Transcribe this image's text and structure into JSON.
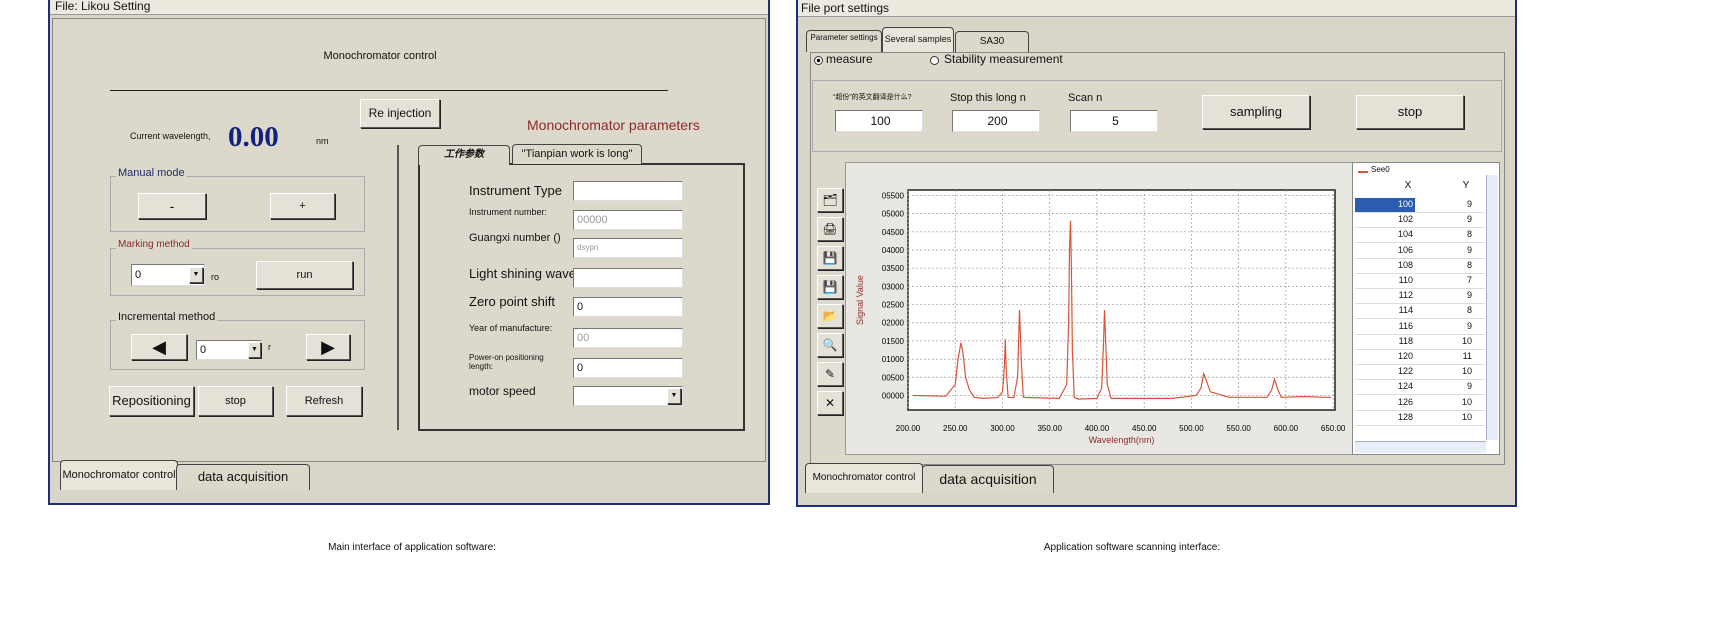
{
  "left_window": {
    "title": "File: Likou Setting",
    "heading": "Monochromator control",
    "reinject_button": "Re injection",
    "wavelength_label": "Current wavelength,",
    "wavelength_value": "0.00",
    "wavelength_unit": "nm",
    "params_title": "Monochromator parameters",
    "manual_mode": {
      "label": "Manual mode",
      "minus": "-",
      "plus": "+"
    },
    "marking": {
      "label": "Marking method",
      "select": "0",
      "unit": "ro",
      "button": "run"
    },
    "incremental": {
      "label": "Incremental method",
      "select": "0",
      "unit": "r"
    },
    "buttons": [
      "Repositioning",
      "stop",
      "Refresh"
    ],
    "param_tabs": [
      "工作参数",
      "\"Tianpian work is long\""
    ],
    "fields": [
      {
        "label": "Instrument Type",
        "value": ""
      },
      {
        "label": "Instrument number:",
        "value": "00000"
      },
      {
        "label": "Guangxi number ()",
        "value": "dsypn"
      },
      {
        "label": "Light shining wavelength:",
        "value": ""
      },
      {
        "label": "Zero point shift",
        "value": "0"
      },
      {
        "label": "Year of manufacture:",
        "value": "00"
      },
      {
        "label": "Power-on positioning length:",
        "value": "0"
      },
      {
        "label": "motor speed",
        "value": ""
      }
    ],
    "tabs": [
      "Monochromator control",
      "data acquisition"
    ],
    "caption": "Main interface of application software:"
  },
  "right_window": {
    "title": "File port settings",
    "tabs": [
      "Parameter settings",
      "Several samples",
      "SA30"
    ],
    "modes": [
      "measure",
      "Stability measurement"
    ],
    "params": [
      {
        "label": "“超份”的英文翻译是什么?",
        "value": "100"
      },
      {
        "label": "Stop this long n",
        "value": "200"
      },
      {
        "label": "Scan n",
        "value": "5"
      }
    ],
    "buttons": [
      "sampling",
      "stop"
    ],
    "table": {
      "headers": [
        "X",
        "Y"
      ],
      "rows": [
        [
          "100",
          "9"
        ],
        [
          "102",
          "9"
        ],
        [
          "104",
          "8"
        ],
        [
          "106",
          "9"
        ],
        [
          "108",
          "8"
        ],
        [
          "110",
          "7"
        ],
        [
          "112",
          "9"
        ],
        [
          "114",
          "8"
        ],
        [
          "116",
          "9"
        ],
        [
          "118",
          "10"
        ],
        [
          "120",
          "11"
        ],
        [
          "122",
          "10"
        ],
        [
          "124",
          "9"
        ],
        [
          "126",
          "10"
        ],
        [
          "128",
          "10"
        ]
      ]
    },
    "bottom_tabs": [
      "Monochromator control",
      "data acquisition"
    ],
    "caption": "Application software scanning interface:"
  },
  "chart_data": {
    "type": "line",
    "x_label": "Wavelength(nm)",
    "y_label": "Signal Value",
    "grid": true,
    "xlim": [
      200,
      652
    ],
    "ylim": [
      -400,
      5650
    ],
    "xticks": [
      {
        "value": 200,
        "label": "200.00"
      },
      {
        "value": 250,
        "label": "250.00"
      },
      {
        "value": 300,
        "label": "300.00"
      },
      {
        "value": 350,
        "label": "350.00"
      },
      {
        "value": 400,
        "label": "400.00"
      },
      {
        "value": 450,
        "label": "450.00"
      },
      {
        "value": 500,
        "label": "500.00"
      },
      {
        "value": 550,
        "label": "550.00"
      },
      {
        "value": 600,
        "label": "600.00"
      },
      {
        "value": 650,
        "label": "650.00"
      }
    ],
    "yticks": [
      {
        "value": 0,
        "label": "00000"
      },
      {
        "value": 500,
        "label": "00500"
      },
      {
        "value": 1000,
        "label": "01000"
      },
      {
        "value": 1500,
        "label": "01500"
      },
      {
        "value": 2000,
        "label": "02000"
      },
      {
        "value": 2500,
        "label": "02500"
      },
      {
        "value": 3000,
        "label": "03000"
      },
      {
        "value": 3500,
        "label": "03500"
      },
      {
        "value": 4000,
        "label": "04000"
      },
      {
        "value": 4500,
        "label": "04500"
      },
      {
        "value": 5000,
        "label": "05000"
      },
      {
        "value": 5500,
        "label": "05500"
      }
    ],
    "x": [
      205,
      240,
      250,
      253,
      256,
      258,
      261,
      265,
      270,
      280,
      295,
      300,
      302,
      303,
      304,
      306,
      312,
      316,
      318,
      320,
      322,
      330,
      360,
      368,
      370,
      371,
      372,
      373,
      374,
      376,
      380,
      400,
      405,
      407,
      408,
      409,
      411,
      415,
      440,
      480,
      505,
      510,
      513,
      516,
      520,
      540,
      580,
      585,
      588,
      591,
      595,
      620,
      640,
      648
    ],
    "series": [
      {
        "name": "See0",
        "color": "#d9543a",
        "values": [
          0,
          -20,
          300,
          1000,
          1450,
          1200,
          500,
          150,
          -50,
          -80,
          -60,
          100,
          800,
          1550,
          700,
          -50,
          -60,
          500,
          2350,
          900,
          -50,
          -60,
          -80,
          300,
          2000,
          4000,
          4800,
          3500,
          1200,
          -50,
          -100,
          -80,
          200,
          1500,
          2350,
          1700,
          300,
          -80,
          -80,
          -80,
          0,
          200,
          600,
          400,
          100,
          -50,
          -50,
          150,
          450,
          200,
          -50,
          -30,
          -50,
          -50
        ]
      }
    ]
  }
}
